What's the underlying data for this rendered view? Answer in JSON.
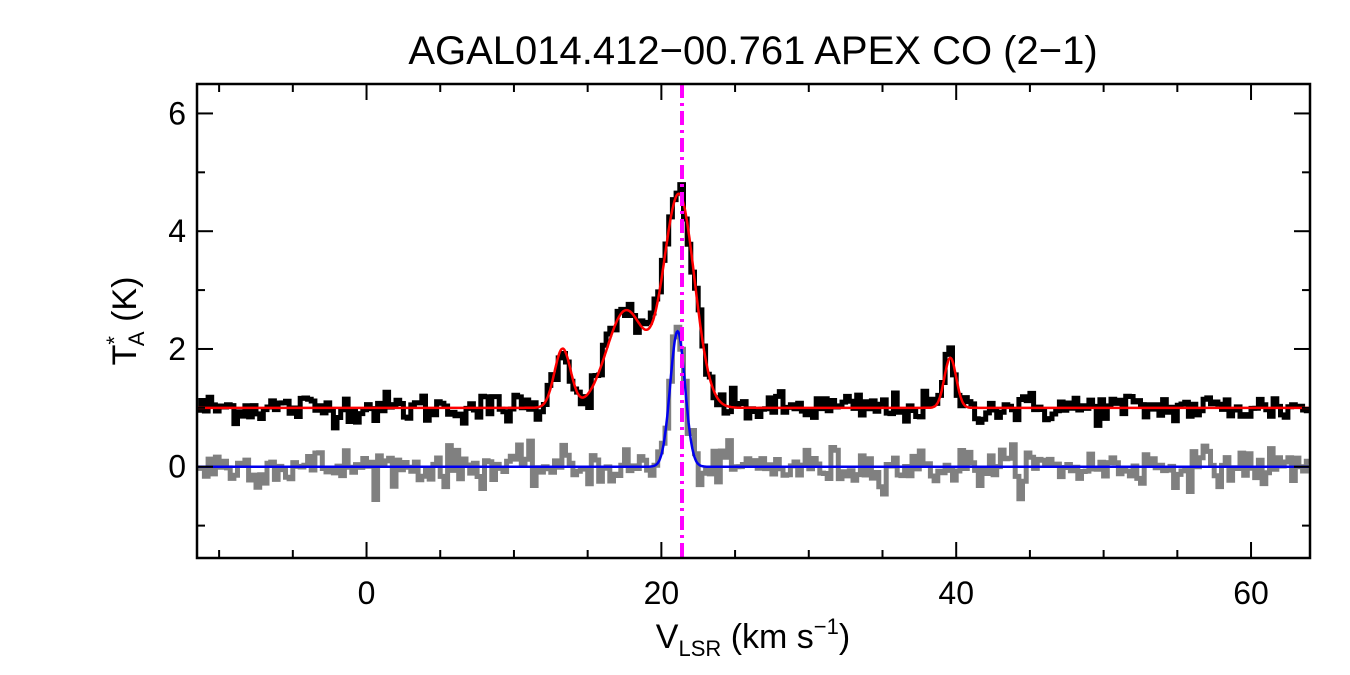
{
  "chart_data": {
    "type": "line",
    "title": "AGAL014.412−00.761  APEX CO (2−1)",
    "xlabel": {
      "main": "V",
      "sub": "LSR",
      "rest": " (km s",
      "sup": "−1",
      "close": ")"
    },
    "ylabel": {
      "main": "T",
      "sup": "*",
      "sub": "A",
      "rest": " (K)"
    },
    "xlim": [
      -11.5,
      64
    ],
    "ylim": [
      -1.55,
      6.5
    ],
    "x_ticks": [
      0,
      20,
      40,
      60
    ],
    "x_tick_labels": [
      "0",
      "20",
      "40",
      "60"
    ],
    "x_minor_step": 5,
    "y_ticks": [
      0,
      2,
      4,
      6
    ],
    "y_tick_labels": [
      "0",
      "2",
      "4",
      "6"
    ],
    "y_minor_step": 1,
    "vline": {
      "x": 21.4,
      "color": "#ff00ff",
      "style": "dash-dot"
    },
    "series": [
      {
        "kind": "observed_spectrum_offset",
        "color": "#000000",
        "step": true,
        "channel_width": 0.25,
        "x_start": -11.5,
        "baseline": 1.0,
        "noise_sigma": 0.13,
        "features": [
          {
            "center": 13.3,
            "amp": 1.0,
            "sigma": 0.55
          },
          {
            "center": 17.6,
            "amp": 1.65,
            "sigma": 1.3
          },
          {
            "center": 21.2,
            "amp": 3.6,
            "sigma": 1.05
          },
          {
            "center": 39.6,
            "amp": 0.85,
            "sigma": 0.4
          }
        ]
      },
      {
        "kind": "observed_spectrum",
        "color": "#808080",
        "step": true,
        "channel_width": 0.25,
        "x_start": -11.5,
        "baseline": 0.0,
        "noise_sigma": 0.16,
        "features": [
          {
            "center": 21.1,
            "amp": 2.3,
            "sigma": 0.5
          }
        ]
      },
      {
        "kind": "gaussian_fit",
        "color": "#ff0000",
        "baseline": 1.0,
        "components": [
          {
            "center": 13.3,
            "amp": 1.0,
            "sigma": 0.55
          },
          {
            "center": 17.6,
            "amp": 1.65,
            "sigma": 1.3
          },
          {
            "center": 21.2,
            "amp": 3.6,
            "sigma": 1.05
          },
          {
            "center": 39.6,
            "amp": 0.85,
            "sigma": 0.4
          }
        ]
      },
      {
        "kind": "gaussian_fit",
        "color": "#0000ee",
        "baseline": 0.0,
        "components": [
          {
            "center": 21.1,
            "amp": 2.3,
            "sigma": 0.5
          }
        ]
      }
    ]
  }
}
